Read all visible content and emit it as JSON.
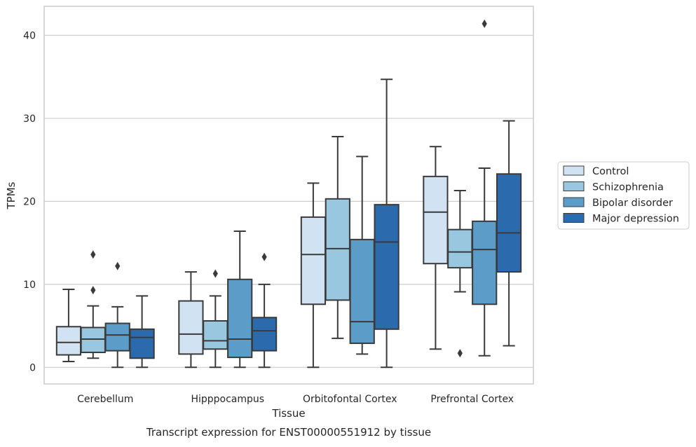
{
  "chart_data": {
    "type": "box",
    "ylabel": "TPMs",
    "xlabel": "Tissue",
    "caption": "Transcript expression for ENST00000551912 by tissue",
    "ylim": [
      -2,
      43.5
    ],
    "yticks": [
      0,
      10,
      20,
      30,
      40
    ],
    "categories": [
      "Cerebellum",
      "Hipppocampus",
      "Orbitofontal Cortex",
      "Prefrontal Cortex"
    ],
    "grid": "horizontal",
    "legend_position": "right",
    "series": [
      {
        "name": "Control",
        "color": "#d1e2f2",
        "boxes": [
          {
            "whisker_low": 0.7,
            "q1": 1.5,
            "median": 3.0,
            "q3": 4.9,
            "whisker_high": 9.4,
            "outliers": []
          },
          {
            "whisker_low": 0.0,
            "q1": 1.6,
            "median": 4.0,
            "q3": 8.0,
            "whisker_high": 11.5,
            "outliers": []
          },
          {
            "whisker_low": 0.0,
            "q1": 7.6,
            "median": 13.6,
            "q3": 18.1,
            "whisker_high": 22.2,
            "outliers": []
          },
          {
            "whisker_low": 2.2,
            "q1": 12.5,
            "median": 18.7,
            "q3": 23.0,
            "whisker_high": 26.6,
            "outliers": []
          }
        ]
      },
      {
        "name": "Schizophrenia",
        "color": "#9ac7e0",
        "boxes": [
          {
            "whisker_low": 1.1,
            "q1": 1.8,
            "median": 3.4,
            "q3": 4.8,
            "whisker_high": 7.4,
            "outliers": [
              13.6,
              9.3
            ]
          },
          {
            "whisker_low": 0.0,
            "q1": 2.2,
            "median": 3.2,
            "q3": 5.6,
            "whisker_high": 8.6,
            "outliers": [
              11.3
            ]
          },
          {
            "whisker_low": 3.5,
            "q1": 8.1,
            "median": 14.3,
            "q3": 20.3,
            "whisker_high": 27.8,
            "outliers": []
          },
          {
            "whisker_low": 9.1,
            "q1": 12.0,
            "median": 13.9,
            "q3": 16.6,
            "whisker_high": 21.3,
            "outliers": [
              1.7
            ]
          }
        ]
      },
      {
        "name": "Bipolar disorder",
        "color": "#5b9cc8",
        "boxes": [
          {
            "whisker_low": 0.0,
            "q1": 2.0,
            "median": 3.9,
            "q3": 5.3,
            "whisker_high": 7.3,
            "outliers": [
              12.2
            ]
          },
          {
            "whisker_low": 0.0,
            "q1": 1.2,
            "median": 3.4,
            "q3": 10.6,
            "whisker_high": 16.4,
            "outliers": []
          },
          {
            "whisker_low": 1.6,
            "q1": 2.9,
            "median": 5.5,
            "q3": 15.4,
            "whisker_high": 25.4,
            "outliers": []
          },
          {
            "whisker_low": 1.4,
            "q1": 7.6,
            "median": 14.2,
            "q3": 17.6,
            "whisker_high": 24.0,
            "outliers": [
              41.4
            ]
          }
        ]
      },
      {
        "name": "Major depression",
        "color": "#2a6aad",
        "boxes": [
          {
            "whisker_low": 0.0,
            "q1": 1.1,
            "median": 3.6,
            "q3": 4.6,
            "whisker_high": 8.6,
            "outliers": []
          },
          {
            "whisker_low": 0.0,
            "q1": 2.0,
            "median": 4.4,
            "q3": 6.0,
            "whisker_high": 10.0,
            "outliers": [
              13.3
            ]
          },
          {
            "whisker_low": 0.0,
            "q1": 4.6,
            "median": 15.1,
            "q3": 19.6,
            "whisker_high": 34.7,
            "outliers": []
          },
          {
            "whisker_low": 2.6,
            "q1": 11.5,
            "median": 16.2,
            "q3": 23.3,
            "whisker_high": 29.7,
            "outliers": []
          }
        ]
      }
    ]
  }
}
